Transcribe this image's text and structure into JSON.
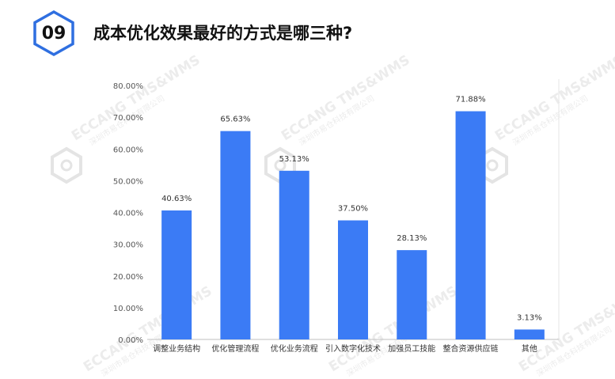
{
  "header": {
    "number": "09",
    "title": "成本优化效果最好的方式是哪三种?"
  },
  "watermark": {
    "text": "ECCANG TMS&WMS",
    "subtext": "深圳市易仓科技有限公司"
  },
  "colors": {
    "bar": "#3B7BF5",
    "badge_border": "#2F6FE0",
    "grid": "#dcdcdc",
    "axis": "#bfbfbf"
  },
  "chart_data": {
    "type": "bar",
    "title": "",
    "xlabel": "",
    "ylabel": "",
    "categories": [
      "调整业务结构",
      "优化管理流程",
      "优化业务流程",
      "引入数字化技术",
      "加强员工技能",
      "整合资源供应链",
      "其他"
    ],
    "values": [
      40.63,
      65.63,
      53.13,
      37.5,
      28.13,
      71.88,
      3.13
    ],
    "data_labels": [
      "40.63%",
      "65.63%",
      "53.13%",
      "37.50%",
      "28.13%",
      "71.88%",
      "3.13%"
    ],
    "yticks": [
      "0.00%",
      "10.00%",
      "20.00%",
      "30.00%",
      "40.00%",
      "50.00%",
      "60.00%",
      "70.00%",
      "80.00%"
    ],
    "ylim": [
      0,
      80
    ],
    "grid": false,
    "legend": "none"
  }
}
